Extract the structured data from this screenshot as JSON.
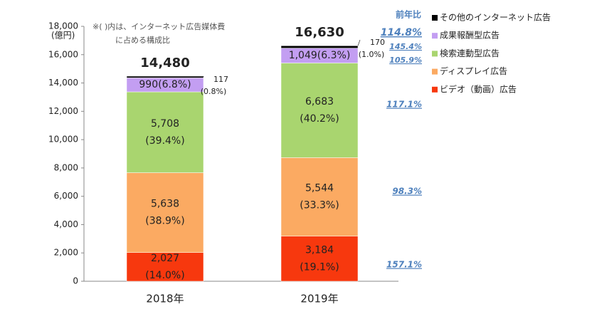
{
  "chart_data": {
    "type": "stacked_bar",
    "categories": [
      "2018年",
      "2019年"
    ],
    "ylim": [
      0,
      18000
    ],
    "yticks": [
      0,
      {
        "value": 2000,
        "label": "2,000"
      },
      {
        "value": 4000,
        "label": "4,000"
      },
      {
        "value": 6000,
        "label": "6,000"
      },
      {
        "value": 8000,
        "label": "8,000"
      },
      {
        "value": 10000,
        "label": "10,000"
      },
      {
        "value": 12000,
        "label": "12,000"
      },
      {
        "value": 14000,
        "label": "14,000"
      },
      {
        "value": 16000,
        "label": "16,000"
      },
      {
        "value": 18000,
        "label": "18,000"
      }
    ],
    "y_unit": "(億円)",
    "annotation": [
      "※(  )内は、インターネット広告媒体費",
      "に占める構成比"
    ],
    "yoy_title": "前年比",
    "totals": [
      14480,
      16630
    ],
    "total_labels": [
      "14,480",
      "16,630"
    ],
    "total_growth_label": "114.8%",
    "series": [
      {
        "name": "ビデオ（動画）広告",
        "color": "#f7380e",
        "values": [
          2027,
          3184
        ],
        "value_labels": [
          "2,027",
          "3,184"
        ],
        "percent_labels": [
          "(14.0%)",
          "(19.1%)"
        ],
        "growth_label": "157.1%"
      },
      {
        "name": "ディスプレイ広告",
        "color": "#fbaa62",
        "values": [
          5638,
          5544
        ],
        "value_labels": [
          "5,638",
          "5,544"
        ],
        "percent_labels": [
          "(38.9%)",
          "(33.3%)"
        ],
        "growth_label": "98.3%"
      },
      {
        "name": "検索連動型広告",
        "color": "#a9d56f",
        "values": [
          5708,
          6683
        ],
        "value_labels": [
          "5,708",
          "6,683"
        ],
        "percent_labels": [
          "(39.4%)",
          "(40.2%)"
        ],
        "growth_label": "117.1%"
      },
      {
        "name": "成果報酬型広告",
        "color": "#c39ef2",
        "values": [
          990,
          1049
        ],
        "value_labels": [
          "990",
          "1,049"
        ],
        "percent_labels": [
          "(6.8%)",
          "(6.3%)"
        ],
        "growth_label": "105.9%"
      },
      {
        "name": "その他のインターネット広告",
        "color": "#000000",
        "values": [
          117,
          170
        ],
        "value_labels": [
          "117",
          "170"
        ],
        "percent_labels": [
          "(0.8%)",
          "(1.0%)"
        ],
        "growth_label": "145.4%"
      }
    ]
  }
}
